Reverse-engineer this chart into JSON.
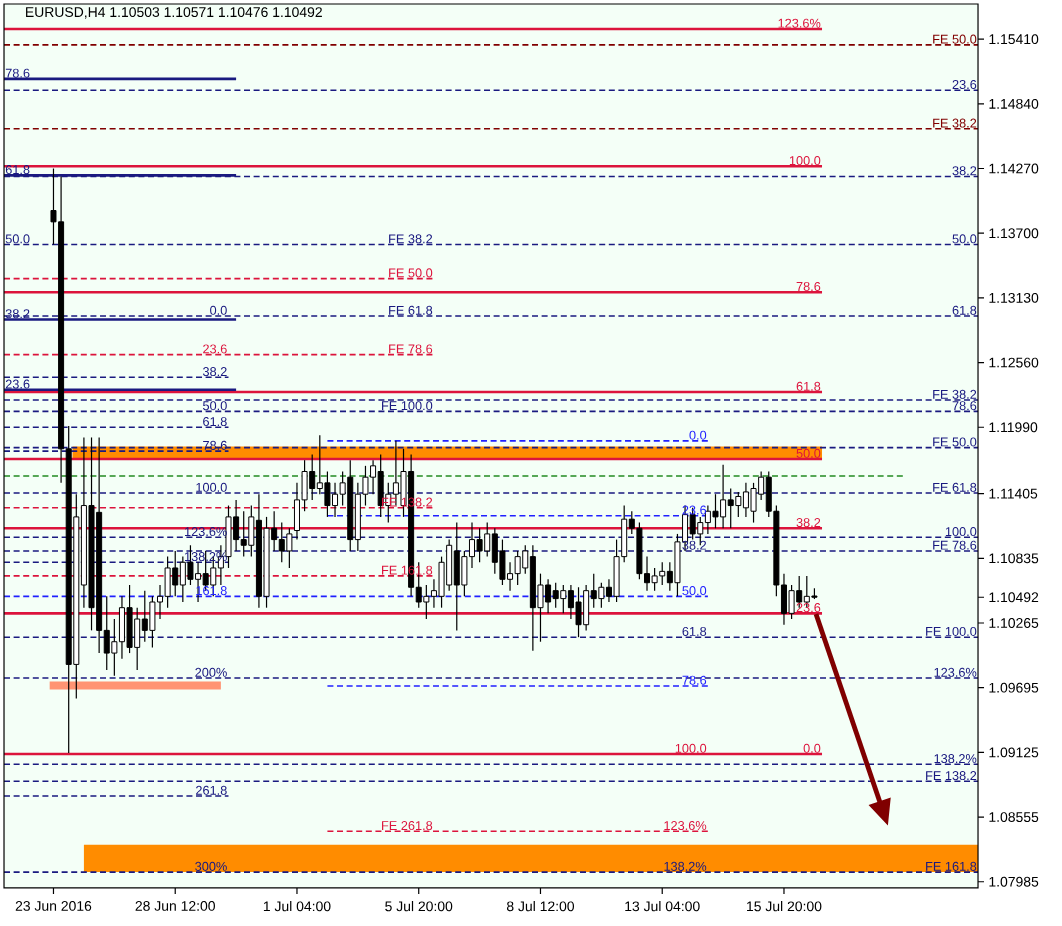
{
  "chart_data": {
    "type": "candlestick",
    "title": "EURUSD,H4 1.10503 1.10571 1.10476 1.10492",
    "categories": [
      "23 Jun 2016",
      null,
      null,
      null,
      null,
      null,
      null,
      null,
      null,
      null,
      null,
      null,
      null,
      null,
      null,
      null,
      "28 Jun 12:00",
      null,
      null,
      null,
      null,
      null,
      null,
      null,
      null,
      null,
      null,
      null,
      null,
      null,
      null,
      null,
      "1 Jul 04:00",
      null,
      null,
      null,
      null,
      null,
      null,
      null,
      null,
      null,
      null,
      null,
      null,
      null,
      null,
      null,
      "5 Jul 20:00",
      null,
      null,
      null,
      null,
      null,
      null,
      null,
      null,
      null,
      null,
      null,
      null,
      null,
      null,
      null,
      "8 Jul 12:00",
      null,
      null,
      null,
      null,
      null,
      null,
      null,
      null,
      null,
      null,
      null,
      null,
      null,
      null,
      null,
      "13 Jul 04:00",
      null,
      null,
      null,
      null,
      null,
      null,
      null,
      null,
      null,
      null,
      null,
      null,
      null,
      null,
      null,
      "15 Jul 20:00",
      null,
      null,
      null,
      null,
      null,
      null,
      null,
      null,
      null,
      null,
      null,
      null,
      null,
      null,
      null,
      null,
      null,
      null,
      null,
      null,
      null,
      null,
      null,
      null,
      null
    ],
    "ohlc": [
      [
        1.139,
        1.1427,
        1.136,
        1.138
      ],
      [
        1.138,
        1.142,
        1.115,
        1.118
      ],
      [
        1.118,
        1.12,
        1.0912,
        1.099
      ],
      [
        1.099,
        1.114,
        1.096,
        1.112
      ],
      [
        1.106,
        1.119,
        1.104,
        1.113
      ],
      [
        1.113,
        1.119,
        1.102,
        1.104
      ],
      [
        1.1124,
        1.119,
        1.1,
        1.102
      ],
      [
        1.102,
        1.105,
        1.0985,
        1.1
      ],
      [
        1.1,
        1.103,
        1.098,
        1.101
      ],
      [
        1.101,
        1.105,
        1.0995,
        1.104
      ],
      [
        1.104,
        1.106,
        1.1,
        1.1005
      ],
      [
        1.1005,
        1.104,
        1.0985,
        1.103
      ],
      [
        1.103,
        1.1055,
        1.101,
        1.102
      ],
      [
        1.102,
        1.105,
        1.1005,
        1.1045
      ],
      [
        1.1045,
        1.106,
        1.103,
        1.105
      ],
      [
        1.105,
        1.1085,
        1.104,
        1.1075
      ],
      [
        1.1075,
        1.109,
        1.105,
        1.106
      ],
      [
        1.106,
        1.1085,
        1.1045,
        1.108
      ],
      [
        1.108,
        1.1095,
        1.106,
        1.1065
      ],
      [
        1.1065,
        1.108,
        1.1045,
        1.107
      ],
      [
        1.107,
        1.109,
        1.1055,
        1.106
      ],
      [
        1.106,
        1.1085,
        1.105,
        1.1075
      ],
      [
        1.1075,
        1.1095,
        1.106,
        1.1085
      ],
      [
        1.1085,
        1.113,
        1.1075,
        1.112
      ],
      [
        1.112,
        1.1135,
        1.109,
        1.11
      ],
      [
        1.11,
        1.1125,
        1.1085,
        1.1095
      ],
      [
        1.1095,
        1.113,
        1.1085,
        1.112
      ],
      [
        1.1117,
        1.114,
        1.104,
        1.105
      ],
      [
        1.105,
        1.112,
        1.104,
        1.111
      ],
      [
        1.111,
        1.1125,
        1.109,
        1.11
      ],
      [
        1.11,
        1.1115,
        1.108,
        1.109
      ],
      [
        1.109,
        1.111,
        1.1075,
        1.1105
      ],
      [
        1.1108,
        1.115,
        1.11,
        1.1135
      ],
      [
        1.1135,
        1.117,
        1.1125,
        1.116
      ],
      [
        1.116,
        1.1175,
        1.1135,
        1.1145
      ],
      [
        1.1145,
        1.1192,
        1.114,
        1.115
      ],
      [
        1.115,
        1.116,
        1.112,
        1.113
      ],
      [
        1.113,
        1.115,
        1.112,
        1.114
      ],
      [
        1.114,
        1.116,
        1.113,
        1.115
      ],
      [
        1.1155,
        1.117,
        1.109,
        1.11
      ],
      [
        1.11,
        1.115,
        1.109,
        1.114
      ],
      [
        1.114,
        1.1165,
        1.113,
        1.1155
      ],
      [
        1.1155,
        1.117,
        1.114,
        1.1165
      ],
      [
        1.116,
        1.1175,
        1.112,
        1.113
      ],
      [
        1.113,
        1.115,
        1.1115,
        1.114
      ],
      [
        1.114,
        1.1187,
        1.113,
        1.115
      ],
      [
        1.113,
        1.118,
        1.112,
        1.116
      ],
      [
        1.116,
        1.1175,
        1.105,
        1.1058
      ],
      [
        1.1058,
        1.108,
        1.104,
        1.1045
      ],
      [
        1.1045,
        1.106,
        1.103,
        1.105
      ],
      [
        1.105,
        1.1065,
        1.104,
        1.1055
      ],
      [
        1.105,
        1.1085,
        1.104,
        1.108
      ],
      [
        1.106,
        1.11,
        1.1055,
        1.1095
      ],
      [
        1.109,
        1.1115,
        1.102,
        1.106
      ],
      [
        1.106,
        1.109,
        1.105,
        1.1085
      ],
      [
        1.1085,
        1.1115,
        1.1075,
        1.11
      ],
      [
        1.11,
        1.111,
        1.108,
        1.109
      ],
      [
        1.109,
        1.1115,
        1.1085,
        1.1105
      ],
      [
        1.1105,
        1.111,
        1.107,
        1.108
      ],
      [
        1.109,
        1.11,
        1.106,
        1.1065
      ],
      [
        1.1065,
        1.108,
        1.1055,
        1.107
      ],
      [
        1.107,
        1.109,
        1.106,
        1.1085
      ],
      [
        1.1075,
        1.1095,
        1.107,
        1.109
      ],
      [
        1.1085,
        1.1095,
        1.1002,
        1.104
      ],
      [
        1.104,
        1.107,
        1.101,
        1.106
      ],
      [
        1.106,
        1.1065,
        1.1035,
        1.1045
      ],
      [
        1.1055,
        1.1062,
        1.104,
        1.1048
      ],
      [
        1.1048,
        1.106,
        1.1035,
        1.1055
      ],
      [
        1.1055,
        1.106,
        1.103,
        1.104
      ],
      [
        1.1045,
        1.1058,
        1.1014,
        1.1025
      ],
      [
        1.1025,
        1.106,
        1.102,
        1.1055
      ],
      [
        1.1055,
        1.107,
        1.104,
        1.1048
      ],
      [
        1.1048,
        1.1062,
        1.104,
        1.1058
      ],
      [
        1.1058,
        1.1065,
        1.1045,
        1.105
      ],
      [
        1.105,
        1.11,
        1.1045,
        1.1085
      ],
      [
        1.1085,
        1.113,
        1.108,
        1.1118
      ],
      [
        1.1118,
        1.1125,
        1.1105,
        1.111
      ],
      [
        1.111,
        1.1115,
        1.1065,
        1.107
      ],
      [
        1.107,
        1.1085,
        1.1055,
        1.1062
      ],
      [
        1.1062,
        1.1075,
        1.1055,
        1.1068
      ],
      [
        1.1068,
        1.108,
        1.106,
        1.1072
      ],
      [
        1.1072,
        1.108,
        1.1055,
        1.1062
      ],
      [
        1.1062,
        1.1105,
        1.105,
        1.1098
      ],
      [
        1.1098,
        1.113,
        1.109,
        1.1122
      ],
      [
        1.1122,
        1.1128,
        1.11,
        1.1105
      ],
      [
        1.1105,
        1.112,
        1.1095,
        1.1115
      ],
      [
        1.1115,
        1.113,
        1.1105,
        1.1125
      ],
      [
        1.1125,
        1.114,
        1.111,
        1.112
      ],
      [
        1.112,
        1.1166,
        1.111,
        1.1135
      ],
      [
        1.1135,
        1.1145,
        1.111,
        1.113
      ],
      [
        1.113,
        1.1142,
        1.112,
        1.1138
      ],
      [
        1.1128,
        1.115,
        1.112,
        1.1142
      ],
      [
        1.1125,
        1.115,
        1.1115,
        1.1145
      ],
      [
        1.114,
        1.116,
        1.1135,
        1.1155
      ],
      [
        1.1155,
        1.116,
        1.112,
        1.1125
      ],
      [
        1.1125,
        1.113,
        1.105,
        1.106
      ],
      [
        1.106,
        1.107,
        1.1025,
        1.1035
      ],
      [
        1.1035,
        1.106,
        1.103,
        1.1055
      ],
      [
        1.1055,
        1.1068,
        1.104,
        1.1045
      ],
      [
        1.1045,
        1.1068,
        1.104,
        1.105
      ],
      [
        1.10503,
        1.10571,
        1.10476,
        1.10492
      ],
      null,
      null,
      null,
      null,
      null,
      null,
      null,
      null,
      null,
      null,
      null,
      null,
      null,
      null,
      null,
      null,
      null,
      null,
      null,
      null,
      null
    ],
    "ylim": [
      1.0793,
      1.1572
    ],
    "yticks": [
      {
        "value": 1.07985,
        "label": "1.07985"
      },
      {
        "value": 1.08555,
        "label": "1.08555"
      },
      {
        "value": 1.09125,
        "label": "1.09125"
      },
      {
        "value": 1.09695,
        "label": "1.09695"
      },
      {
        "value": 1.10265,
        "label": "1.10265"
      },
      {
        "value": 1.10835,
        "label": "1.10835"
      },
      {
        "value": 1.11405,
        "label": "1.11405"
      },
      {
        "value": 1.1199,
        "label": "1.11990"
      },
      {
        "value": 1.1256,
        "label": "1.12560"
      },
      {
        "value": 1.1313,
        "label": "1.13130"
      },
      {
        "value": 1.137,
        "label": "1.13700"
      },
      {
        "value": 1.1427,
        "label": "1.14270"
      },
      {
        "value": 1.1484,
        "label": "1.14840"
      },
      {
        "value": 1.1541,
        "label": "1.15410"
      },
      {
        "value": 1.10492,
        "label": "1.10492"
      }
    ],
    "ref_lines": [
      {
        "axis": "y",
        "value": 1.1496,
        "color": "#1a1a80",
        "line_style": "dashed"
      },
      {
        "axis": "y",
        "value": 1.142,
        "color": "#1a1a80",
        "line_style": "dashed"
      },
      {
        "axis": "y",
        "value": 1.136,
        "color": "#1a1a80",
        "line_style": "dashed"
      },
      {
        "axis": "y",
        "value": 1.1297,
        "color": "#1a1a80",
        "line_style": "dashed"
      },
      {
        "axis": "y",
        "value": 1.1213,
        "color": "#1a1a80",
        "line_style": "dashed"
      },
      {
        "axis": "y",
        "value": 1.1102,
        "color": "#1a1a80",
        "line_style": "dashed"
      },
      {
        "axis": "y",
        "value": 1.0978,
        "color": "#1a1a80",
        "line_style": "dashed"
      },
      {
        "axis": "y",
        "value": 1.0902,
        "color": "#1a1a80",
        "line_style": "dashed"
      },
      {
        "axis": "y",
        "value": 1.1536,
        "color": "#800000",
        "line_style": "dashed"
      },
      {
        "axis": "y",
        "value": 1.1462,
        "color": "#800000",
        "line_style": "dashed"
      },
      {
        "axis": "y",
        "value": 1.1223,
        "color": "#1a1a80",
        "line_style": "dashed"
      },
      {
        "axis": "y",
        "value": 1.1181,
        "color": "#1a1a80",
        "line_style": "dashed"
      },
      {
        "axis": "y",
        "value": 1.1141,
        "color": "#1a1a80",
        "line_style": "dashed"
      },
      {
        "axis": "y",
        "value": 1.109,
        "color": "#1a1a80",
        "line_style": "dashed"
      },
      {
        "axis": "y",
        "value": 1.1014,
        "color": "#1a1a80",
        "line_style": "dashed"
      },
      {
        "axis": "y",
        "value": 1.0887,
        "color": "#1a1a80",
        "line_style": "dashed"
      },
      {
        "axis": "y",
        "value": 1.0807,
        "color": "#1a1a80",
        "line_style": "dashed"
      },
      {
        "axis": "y",
        "value": 1.155,
        "color": "#dc143c",
        "line_style": "solid"
      },
      {
        "axis": "y",
        "value": 1.1429,
        "color": "#dc143c",
        "line_style": "solid"
      },
      {
        "axis": "y",
        "value": 1.1318,
        "color": "#dc143c",
        "line_style": "solid"
      },
      {
        "axis": "y",
        "value": 1.123,
        "color": "#dc143c",
        "line_style": "solid"
      },
      {
        "axis": "y",
        "value": 1.1171,
        "color": "#dc143c",
        "line_style": "solid"
      },
      {
        "axis": "y",
        "value": 1.111,
        "color": "#dc143c",
        "line_style": "solid"
      },
      {
        "axis": "y",
        "value": 1.1035,
        "color": "#dc143c",
        "line_style": "solid"
      },
      {
        "axis": "y",
        "value": 1.0911,
        "color": "#dc143c",
        "line_style": "solid"
      },
      {
        "axis": "y",
        "value": 1.133,
        "color": "#dc143c",
        "line_style": "dashed"
      },
      {
        "axis": "y",
        "value": 1.1263,
        "color": "#dc143c",
        "line_style": "dashed"
      },
      {
        "axis": "y",
        "value": 1.1128,
        "color": "#dc143c",
        "line_style": "dashed"
      },
      {
        "axis": "y",
        "value": 1.1068,
        "color": "#dc143c",
        "line_style": "dashed"
      },
      {
        "axis": "y",
        "value": 1.0843,
        "color": "#dc143c",
        "line_style": "dashed"
      },
      {
        "axis": "y",
        "value": 1.1243,
        "color": "#1a1a80",
        "line_style": "dashed"
      },
      {
        "axis": "y",
        "value": 1.1199,
        "color": "#1a1a80",
        "line_style": "dashed"
      },
      {
        "axis": "y",
        "value": 1.1178,
        "color": "#1a1a80",
        "line_style": "dashed"
      },
      {
        "axis": "y",
        "value": 1.108,
        "color": "#1a1a80",
        "line_style": "dashed"
      },
      {
        "axis": "y",
        "value": 1.0874,
        "color": "#1a1a80",
        "line_style": "dashed"
      },
      {
        "axis": "y",
        "value": 1.1187,
        "color": "#2020ff",
        "line_style": "dashed"
      },
      {
        "axis": "y",
        "value": 1.1121,
        "color": "#2020ff",
        "line_style": "dashed"
      },
      {
        "axis": "y",
        "value": 1.105,
        "color": "#2020ff",
        "line_style": "dashed"
      },
      {
        "axis": "y",
        "value": 1.0971,
        "color": "#2020ff",
        "line_style": "dashed"
      },
      {
        "axis": "y",
        "value": 1.1506,
        "color": "#1a1a80",
        "line_style": "solid"
      },
      {
        "axis": "y",
        "value": 1.1421,
        "color": "#1a1a80",
        "line_style": "solid"
      },
      {
        "axis": "y",
        "value": 1.1294,
        "color": "#1a1a80",
        "line_style": "solid"
      },
      {
        "axis": "y",
        "value": 1.1232,
        "color": "#1a1a80",
        "line_style": "solid"
      },
      {
        "axis": "y",
        "value": 1.1156,
        "color": "#228b22",
        "line_style": "dashed"
      }
    ],
    "annotations": [
      {
        "text": "23.6",
        "y": 1.1496
      },
      {
        "text": "38.2",
        "y": 1.142
      },
      {
        "text": "50.0",
        "y": 1.136
      },
      {
        "text": "61.8",
        "y": 1.1297
      },
      {
        "text": "78.6",
        "y": 1.1213
      },
      {
        "text": "100.0",
        "y": 1.1102
      },
      {
        "text": "123.6%",
        "y": 1.0978
      },
      {
        "text": "138.2%",
        "y": 1.0902
      },
      {
        "text": "FE 50.0",
        "y": 1.1536
      },
      {
        "text": "FE 38.2",
        "y": 1.1462
      },
      {
        "text": "FE 38.2",
        "y": 1.1223
      },
      {
        "text": "FE 50.0",
        "y": 1.1181
      },
      {
        "text": "FE 61.8",
        "y": 1.1141
      },
      {
        "text": "FE 78.6",
        "y": 1.109
      },
      {
        "text": "FE 100.0",
        "y": 1.1014
      },
      {
        "text": "FE 138.2",
        "y": 1.0887
      },
      {
        "text": "FE 161.8",
        "y": 1.0807
      },
      {
        "text": "123.6%",
        "y": 1.155
      },
      {
        "text": "100.0",
        "y": 1.1429
      },
      {
        "text": "78.6",
        "y": 1.1318
      },
      {
        "text": "61.8",
        "y": 1.123
      },
      {
        "text": "50.0",
        "y": 1.1171
      },
      {
        "text": "38.2",
        "y": 1.111
      },
      {
        "text": "23.6",
        "y": 1.1035
      },
      {
        "text": "0.0",
        "y": 1.0911
      },
      {
        "text": "FE 38.2",
        "y": 1.136
      },
      {
        "text": "FE 50.0",
        "y": 1.133
      },
      {
        "text": "FE 61.8",
        "y": 1.1297
      },
      {
        "text": "FE 78.6",
        "y": 1.1263
      },
      {
        "text": "FE 100.0",
        "y": 1.1213
      },
      {
        "text": "FE 138.2",
        "y": 1.1128
      },
      {
        "text": "FE 161.8",
        "y": 1.1068
      },
      {
        "text": "FE 261.8",
        "y": 1.0843
      },
      {
        "text": "0.0",
        "y": 1.1297
      },
      {
        "text": "23.6",
        "y": 1.1263
      },
      {
        "text": "38.2",
        "y": 1.1243
      },
      {
        "text": "50.0",
        "y": 1.1213
      },
      {
        "text": "61.8",
        "y": 1.1199
      },
      {
        "text": "78.6",
        "y": 1.1178
      },
      {
        "text": "100.0",
        "y": 1.1141
      },
      {
        "text": "123.6%",
        "y": 1.1102
      },
      {
        "text": "138.2%",
        "y": 1.108
      },
      {
        "text": "161.8",
        "y": 1.105
      },
      {
        "text": "200%",
        "y": 1.0978
      },
      {
        "text": "261.8",
        "y": 1.0874
      },
      {
        "text": "300%",
        "y": 1.0807
      },
      {
        "text": "0.0",
        "y": 1.1187
      },
      {
        "text": "23.6",
        "y": 1.1121
      },
      {
        "text": "38.2",
        "y": 1.109
      },
      {
        "text": "50.0",
        "y": 1.105
      },
      {
        "text": "61.8",
        "y": 1.1014
      },
      {
        "text": "78.6",
        "y": 1.0971
      },
      {
        "text": "100.0",
        "y": 1.0911
      },
      {
        "text": "123.6%",
        "y": 1.0843
      },
      {
        "text": "138.2%",
        "y": 1.0807
      },
      {
        "text": "78.6",
        "y": 1.1506
      },
      {
        "text": "61.8",
        "y": 1.1421
      },
      {
        "text": "50.0",
        "y": 1.136
      },
      {
        "text": "38.2",
        "y": 1.1294
      },
      {
        "text": "23.6",
        "y": 1.1232
      }
    ],
    "bands": [
      {
        "axis": "y",
        "from": 1.1171,
        "to": 1.1182,
        "color": "#ff8c00"
      },
      {
        "axis": "y",
        "from": 1.0968,
        "to": 1.0975,
        "color": "#ff9473"
      },
      {
        "axis": "y",
        "from": 1.0807,
        "to": 1.0831,
        "color": "#ff8c00"
      }
    ]
  }
}
